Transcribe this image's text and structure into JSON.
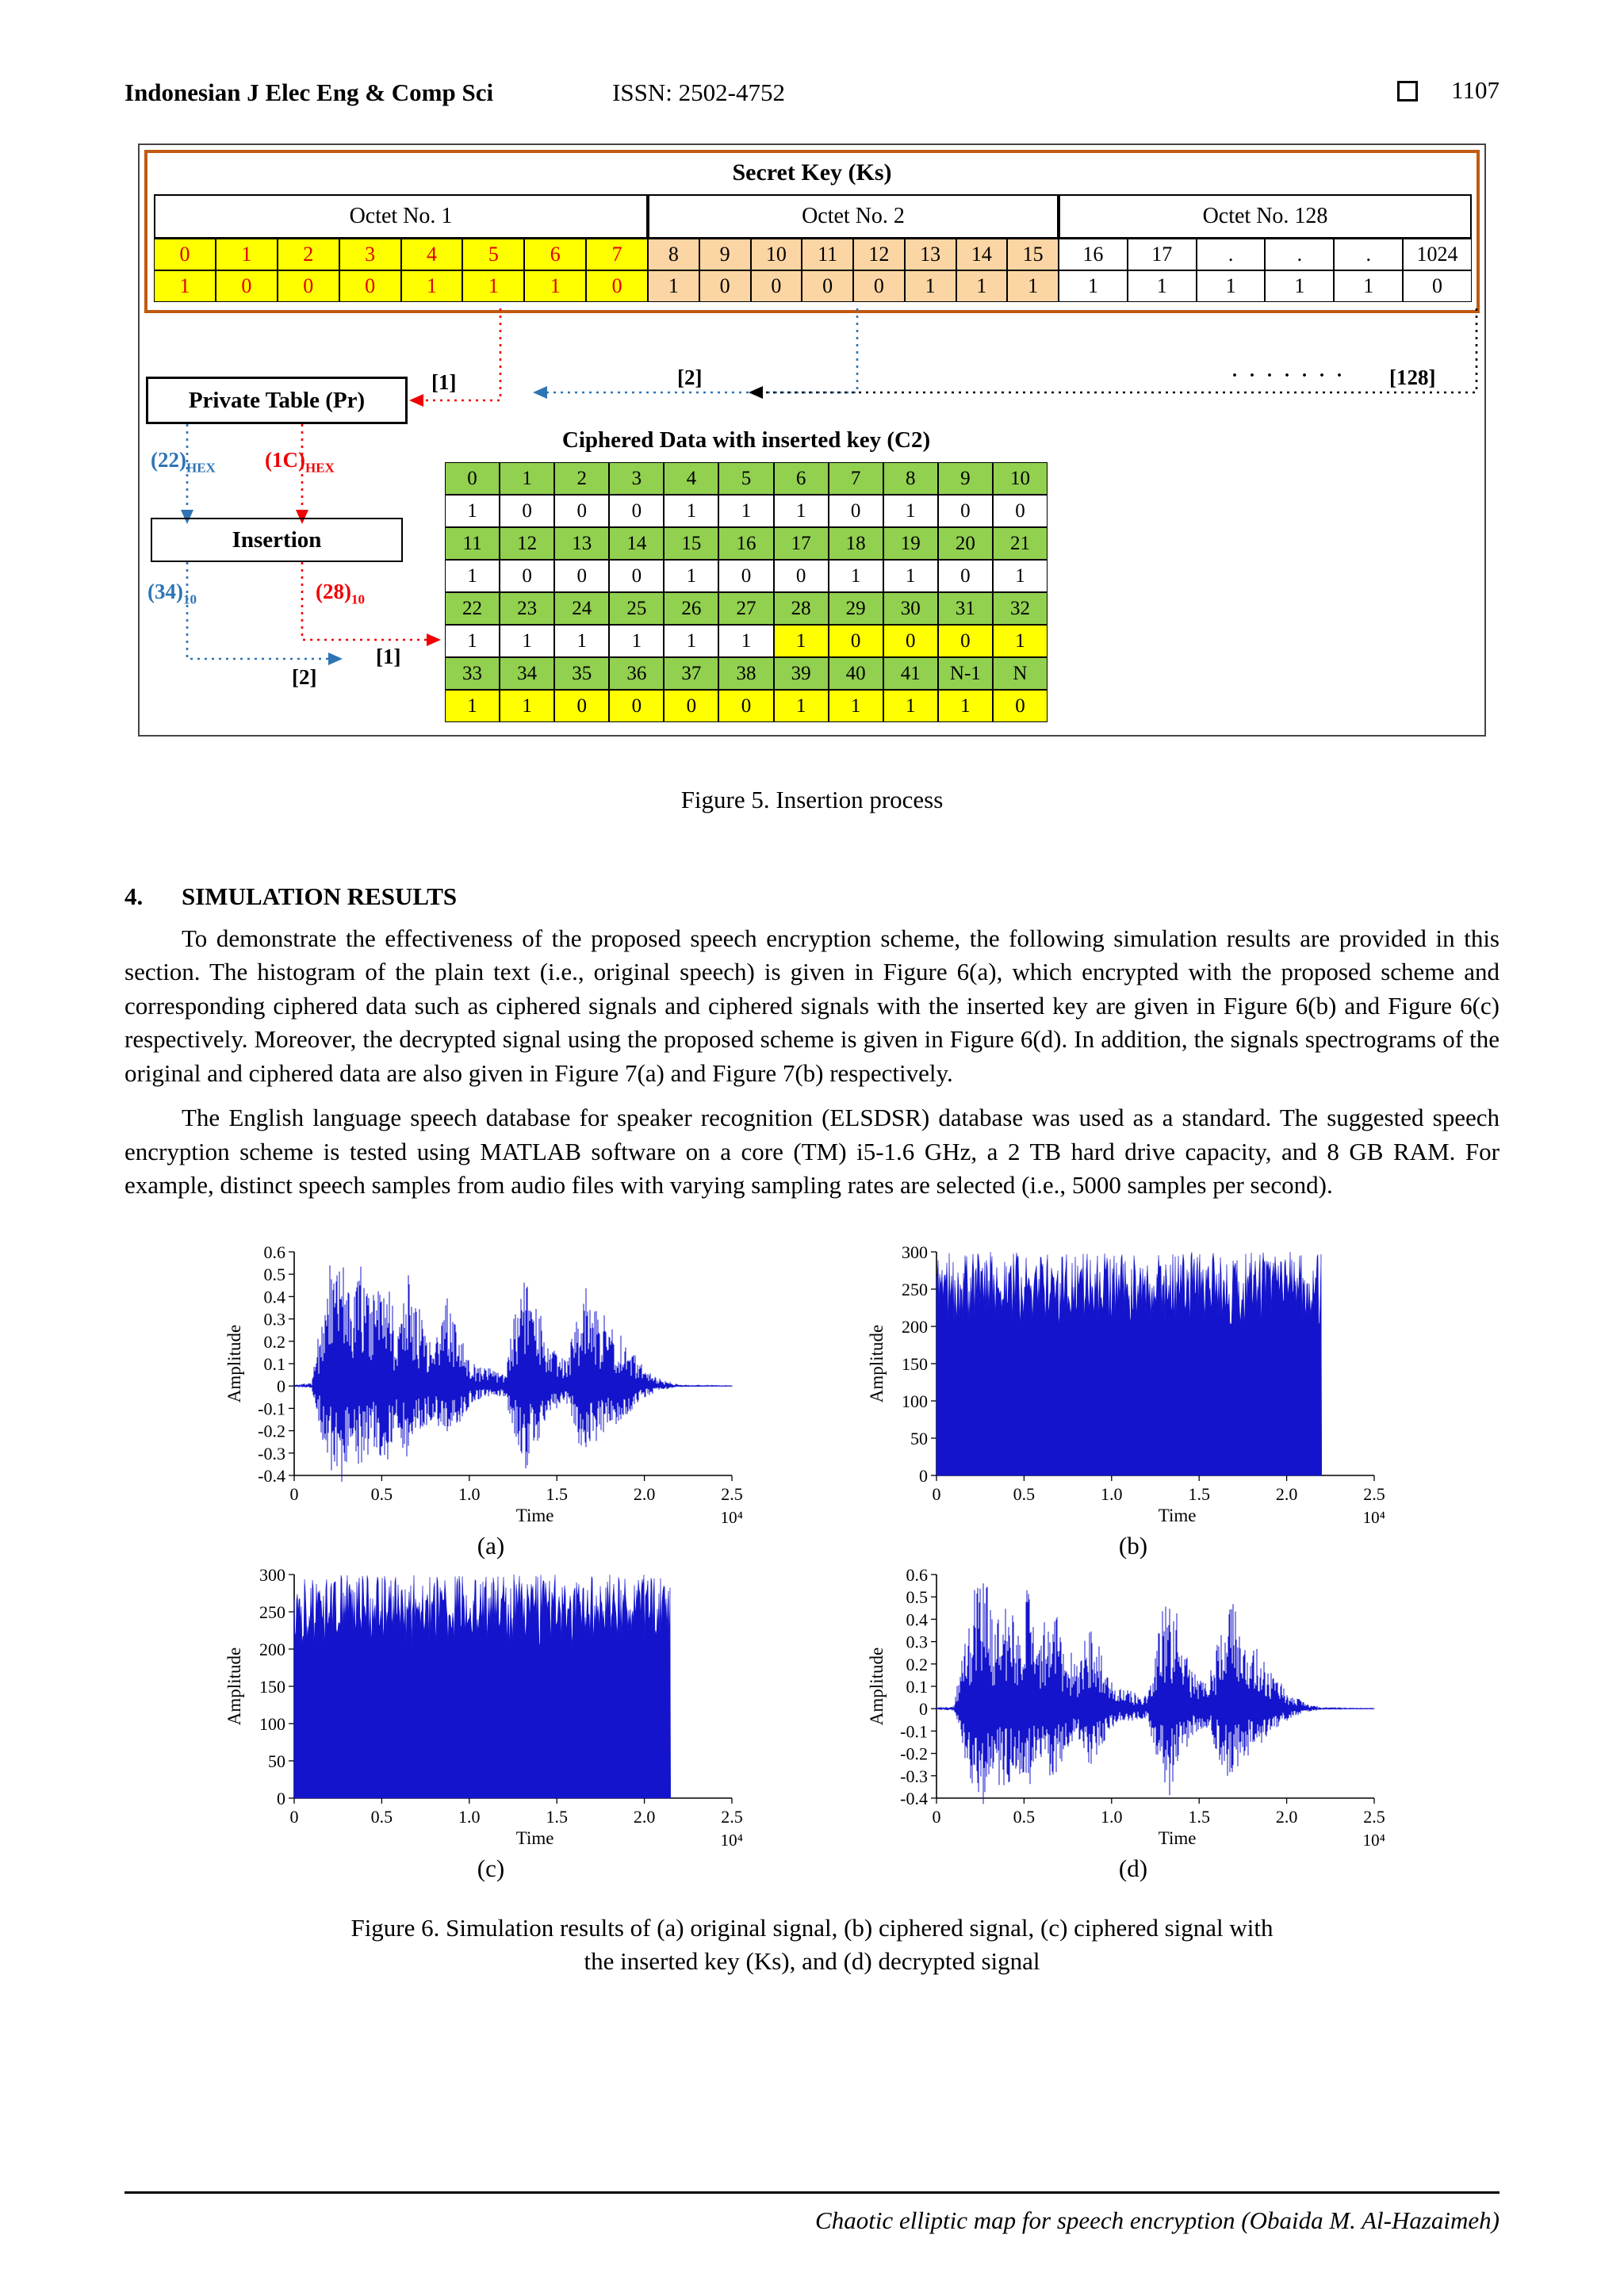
{
  "header": {
    "journal": "Indonesian J Elec Eng & Comp Sci",
    "issn": "ISSN: 2502-4752",
    "page_number": "1107"
  },
  "figure5": {
    "caption": "Figure 5. Insertion process",
    "secret_key": {
      "title": "Secret Key (Ks)",
      "octets": [
        "Octet No. 1",
        "Octet No. 2",
        "Octet No. 128"
      ],
      "groups": [
        {
          "indices": [
            "0",
            "1",
            "2",
            "3",
            "4",
            "5",
            "6",
            "7"
          ],
          "bits": [
            "1",
            "0",
            "0",
            "0",
            "1",
            "1",
            "1",
            "0"
          ]
        },
        {
          "indices": [
            "8",
            "9",
            "10",
            "11",
            "12",
            "13",
            "14",
            "15"
          ],
          "bits": [
            "1",
            "0",
            "0",
            "0",
            "0",
            "1",
            "1",
            "1"
          ]
        },
        {
          "indices": [
            "16",
            "17",
            ".",
            ".",
            ".",
            "1024"
          ],
          "bits": [
            "1",
            "1",
            "1",
            "1",
            "1",
            "0"
          ]
        }
      ]
    },
    "private_table_label": "Private Table (Pr)",
    "insertion_label": "Insertion",
    "labels": {
      "arrow1": "[1]",
      "arrow2": "[2]",
      "arrow128": "[128]",
      "dots": ". . . . . . .",
      "hex_blue": "(22)",
      "hex_red": "(1C)",
      "sub_hex": "HEX",
      "dec_blue": "(34)",
      "dec_red": "(28)",
      "sub_dec": "10",
      "bottom_left": "[2]",
      "bottom_right": "[1]"
    },
    "ciphered": {
      "title": "Ciphered Data with inserted key (C2)",
      "rows": [
        {
          "kind": "idx",
          "cells": [
            "0",
            "1",
            "2",
            "3",
            "4",
            "5",
            "6",
            "7",
            "8",
            "9",
            "10"
          ],
          "hl": []
        },
        {
          "kind": "bit",
          "cells": [
            "1",
            "0",
            "0",
            "0",
            "1",
            "1",
            "1",
            "0",
            "1",
            "0",
            "0"
          ],
          "hl": []
        },
        {
          "kind": "idx",
          "cells": [
            "11",
            "12",
            "13",
            "14",
            "15",
            "16",
            "17",
            "18",
            "19",
            "20",
            "21"
          ],
          "hl": []
        },
        {
          "kind": "bit",
          "cells": [
            "1",
            "0",
            "0",
            "0",
            "1",
            "0",
            "0",
            "1",
            "1",
            "0",
            "1"
          ],
          "hl": []
        },
        {
          "kind": "idx",
          "cells": [
            "22",
            "23",
            "24",
            "25",
            "26",
            "27",
            "28",
            "29",
            "30",
            "31",
            "32"
          ],
          "hl": []
        },
        {
          "kind": "bit",
          "cells": [
            "1",
            "1",
            "1",
            "1",
            "1",
            "1",
            "1",
            "0",
            "0",
            "0",
            "1"
          ],
          "hl": [
            6,
            7,
            8,
            9,
            10
          ]
        },
        {
          "kind": "idx",
          "cells": [
            "33",
            "34",
            "35",
            "36",
            "37",
            "38",
            "39",
            "40",
            "41",
            "N-1",
            "N"
          ],
          "hl": []
        },
        {
          "kind": "bit",
          "cells": [
            "1",
            "1",
            "0",
            "0",
            "0",
            "0",
            "1",
            "1",
            "1",
            "1",
            "0"
          ],
          "hl": [
            0,
            1,
            2,
            3,
            4,
            5,
            6,
            7,
            8,
            9,
            10
          ]
        }
      ]
    }
  },
  "section4": {
    "number": "4.",
    "title": "SIMULATION RESULTS",
    "para1": "To demonstrate the effectiveness of the proposed speech encryption scheme, the following simulation results are provided in this section. The histogram of the plain text (i.e., original speech) is given in Figure 6(a), which encrypted with the proposed scheme and corresponding ciphered data such as ciphered signals and ciphered signals with the inserted key are given in Figure 6(b) and Figure 6(c) respectively. Moreover, the decrypted signal using the proposed scheme is given in Figure 6(d). In addition, the signals spectrograms of the original and ciphered data are also given in Figure 7(a) and Figure 7(b) respectively.",
    "para2": "The English language speech database for speaker recognition (ELSDSR) database was used as a standard. The suggested speech encryption scheme is tested using MATLAB software on a core (TM) i5-1.6 GHz, a 2 TB hard drive capacity, and 8 GB RAM. For example, distinct speech samples from audio files with varying sampling rates are selected (i.e., 5000 samples per second)."
  },
  "figure6": {
    "caption_line1": "Figure 6. Simulation results of (a) original signal, (b) ciphered signal, (c) ciphered signal with",
    "caption_line2": "the inserted key (Ks), and (d) decrypted signal"
  },
  "chart_data": [
    {
      "type": "line",
      "subtype": "waveform",
      "label": "(a)",
      "title": "original signal",
      "ylabel": "Amplitude",
      "xlabel": "Time",
      "x_exponent": "10⁴",
      "xlim": [
        0,
        2.5
      ],
      "ylim": [
        -0.4,
        0.6
      ],
      "x_ticks": [
        "0",
        "0.5",
        "1.0",
        "1.5",
        "2.0",
        "2.5"
      ],
      "y_ticks": [
        "0.6",
        "0.5",
        "0.4",
        "0.3",
        "0.2",
        "0.1",
        "0",
        "-0.1",
        "-0.2",
        "-0.3",
        "-0.4"
      ],
      "color": "#1414cc",
      "seed": 7,
      "pos_scale": 0.58,
      "neg_scale": 0.42,
      "envelope": [
        [
          0,
          0.01
        ],
        [
          0.1,
          0.02
        ],
        [
          0.14,
          0.35
        ],
        [
          0.2,
          0.8
        ],
        [
          0.27,
          0.95
        ],
        [
          0.33,
          0.55
        ],
        [
          0.38,
          0.9
        ],
        [
          0.45,
          0.6
        ],
        [
          0.52,
          0.85
        ],
        [
          0.58,
          0.4
        ],
        [
          0.65,
          0.75
        ],
        [
          0.72,
          0.5
        ],
        [
          0.8,
          0.3
        ],
        [
          0.87,
          0.6
        ],
        [
          0.95,
          0.35
        ],
        [
          1.02,
          0.15
        ],
        [
          1.1,
          0.12
        ],
        [
          1.2,
          0.1
        ],
        [
          1.27,
          0.55
        ],
        [
          1.33,
          0.85
        ],
        [
          1.4,
          0.5
        ],
        [
          1.47,
          0.25
        ],
        [
          1.55,
          0.18
        ],
        [
          1.62,
          0.55
        ],
        [
          1.68,
          0.75
        ],
        [
          1.75,
          0.5
        ],
        [
          1.83,
          0.4
        ],
        [
          1.9,
          0.28
        ],
        [
          2.0,
          0.12
        ],
        [
          2.1,
          0.04
        ],
        [
          2.2,
          0.01
        ],
        [
          2.5,
          0.005
        ]
      ]
    },
    {
      "type": "line",
      "subtype": "block",
      "label": "(b)",
      "title": "ciphered signal",
      "ylabel": "Amplitude",
      "xlabel": "Time",
      "x_exponent": "10⁴",
      "xlim": [
        0,
        2.5
      ],
      "ylim": [
        0,
        300
      ],
      "x_ticks": [
        "0",
        "0.5",
        "1.0",
        "1.5",
        "2.0",
        "2.5"
      ],
      "y_ticks": [
        "0",
        "50",
        "100",
        "150",
        "200",
        "250",
        "300"
      ],
      "color": "#1414cc",
      "seed": 11,
      "x_end": 2.2,
      "top_base": 262,
      "top_noise": 38
    },
    {
      "type": "line",
      "subtype": "block",
      "label": "(c)",
      "title": "ciphered signal with inserted key",
      "ylabel": "Amplitude",
      "xlabel": "Time",
      "x_exponent": "10⁴",
      "xlim": [
        0,
        2.5
      ],
      "ylim": [
        0,
        300
      ],
      "x_ticks": [
        "0",
        "0.5",
        "1.0",
        "1.5",
        "2.0",
        "2.5"
      ],
      "y_ticks": [
        "0",
        "50",
        "100",
        "150",
        "200",
        "250",
        "300"
      ],
      "color": "#1414cc",
      "seed": 13,
      "x_end": 2.15,
      "top_base": 262,
      "top_noise": 38
    },
    {
      "type": "line",
      "subtype": "waveform",
      "label": "(d)",
      "title": "decrypted signal",
      "ylabel": "Amplitude",
      "xlabel": "Time",
      "x_exponent": "10⁴",
      "xlim": [
        0,
        2.5
      ],
      "ylim": [
        -0.4,
        0.6
      ],
      "x_ticks": [
        "0",
        "0.5",
        "1.0",
        "1.5",
        "2.0",
        "2.5"
      ],
      "y_ticks": [
        "0.6",
        "0.5",
        "0.4",
        "0.3",
        "0.2",
        "0.1",
        "0",
        "-0.1",
        "-0.2",
        "-0.3",
        "-0.4"
      ],
      "color": "#1414cc",
      "seed": 29,
      "pos_scale": 0.58,
      "neg_scale": 0.42,
      "envelope": [
        [
          0,
          0.01
        ],
        [
          0.1,
          0.02
        ],
        [
          0.14,
          0.35
        ],
        [
          0.2,
          0.8
        ],
        [
          0.27,
          0.95
        ],
        [
          0.33,
          0.55
        ],
        [
          0.38,
          0.9
        ],
        [
          0.45,
          0.6
        ],
        [
          0.52,
          0.85
        ],
        [
          0.58,
          0.4
        ],
        [
          0.65,
          0.75
        ],
        [
          0.72,
          0.5
        ],
        [
          0.8,
          0.3
        ],
        [
          0.87,
          0.6
        ],
        [
          0.95,
          0.35
        ],
        [
          1.02,
          0.15
        ],
        [
          1.1,
          0.12
        ],
        [
          1.2,
          0.1
        ],
        [
          1.27,
          0.55
        ],
        [
          1.33,
          0.85
        ],
        [
          1.4,
          0.5
        ],
        [
          1.47,
          0.25
        ],
        [
          1.55,
          0.18
        ],
        [
          1.62,
          0.55
        ],
        [
          1.68,
          0.75
        ],
        [
          1.75,
          0.5
        ],
        [
          1.83,
          0.4
        ],
        [
          1.9,
          0.28
        ],
        [
          2.0,
          0.12
        ],
        [
          2.1,
          0.04
        ],
        [
          2.2,
          0.01
        ],
        [
          2.5,
          0.005
        ]
      ]
    }
  ],
  "footer": {
    "text": "Chaotic elliptic map for speech encryption (Obaida M. Al-Hazaimeh)"
  }
}
